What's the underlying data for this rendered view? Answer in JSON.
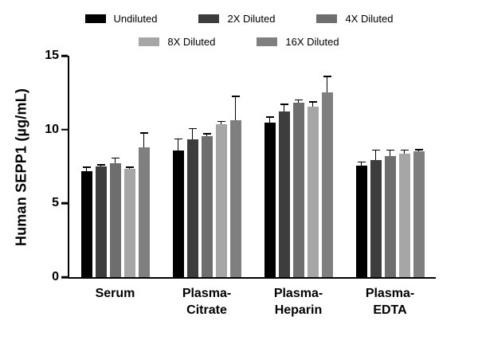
{
  "figure": {
    "background": "#ffffff",
    "axis_color": "#000000",
    "error_bar_color": "#000000"
  },
  "chart_data": {
    "type": "bar",
    "title": "",
    "xlabel": "",
    "ylabel": "Human SEPP1 (µg/mL)",
    "ylim": [
      0,
      15
    ],
    "yticks": [
      0,
      5,
      10,
      15
    ],
    "grid": false,
    "legend_position": "top",
    "error_bars": "upper",
    "legend_rows": [
      [
        "Undiluted",
        "2X Diluted",
        "4X Diluted"
      ],
      [
        "8X Diluted",
        "16X Diluted"
      ]
    ],
    "categories": [
      "Serum",
      "Plasma-\nCitrate",
      "Plasma-\nHeparin",
      "Plasma-\nEDTA"
    ],
    "series": [
      {
        "name": "Undiluted",
        "color": "#000000",
        "values": [
          7.2,
          8.6,
          10.45,
          7.55
        ],
        "errors": [
          0.3,
          0.8,
          0.45,
          0.3
        ]
      },
      {
        "name": "2X Diluted",
        "color": "#3d3d3d",
        "values": [
          7.5,
          9.35,
          11.2,
          7.95
        ],
        "errors": [
          0.15,
          0.75,
          0.55,
          0.7
        ]
      },
      {
        "name": "4X Diluted",
        "color": "#6e6e6e",
        "values": [
          7.7,
          9.55,
          11.8,
          8.2
        ],
        "errors": [
          0.4,
          0.2,
          0.25,
          0.45
        ]
      },
      {
        "name": "8X Diluted",
        "color": "#a6a6a6",
        "values": [
          7.35,
          10.35,
          11.55,
          8.35
        ],
        "errors": [
          0.15,
          0.25,
          0.35,
          0.3
        ]
      },
      {
        "name": "16X Diluted",
        "color": "#7f7f7f",
        "values": [
          8.8,
          10.65,
          12.5,
          8.55
        ],
        "errors": [
          1.0,
          1.65,
          1.15,
          0.12
        ]
      }
    ]
  }
}
